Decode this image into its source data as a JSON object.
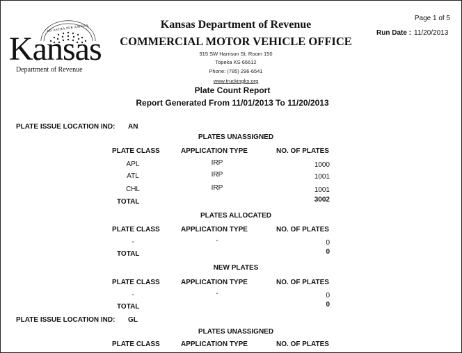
{
  "header": {
    "page_indicator": "Page 1 of 5",
    "run_date_label": "Run Date :",
    "run_date": "11/20/2013",
    "org_name": "Kansas Department of Revenue",
    "office": "COMMERCIAL MOTOR VEHICLE OFFICE",
    "address_line1": "915 SW Harrison St. Room 150",
    "address_line2": "Topeka KS 66612",
    "phone": "Phone: (785) 296-6541",
    "website": "www.truckingks.org",
    "report_title": "Plate Count Report",
    "report_range": "Report Generated From 11/01/2013 To 11/20/2013"
  },
  "logo": {
    "motto": "AD ASTRA PER ASPERA",
    "wordmark": "Kansas",
    "subtitle": "Department of Revenue"
  },
  "columns": {
    "plate_class": "PLATE CLASS",
    "application_type": "APPLICATION TYPE",
    "no_of_plates": "NO. OF PLATES"
  },
  "total_label": "TOTAL",
  "location_label": "PLATE ISSUE LOCATION IND:",
  "locations": [
    {
      "code": "AN",
      "sections": [
        {
          "title": "PLATES UNASSIGNED",
          "rows": [
            {
              "plate_class": "APL",
              "application_type": "IRP",
              "count": "1000"
            },
            {
              "plate_class": "ATL",
              "application_type": "IRP",
              "count": "1001"
            },
            {
              "plate_class": "CHL",
              "application_type": "IRP",
              "count": "1001"
            }
          ],
          "total": "3002"
        },
        {
          "title": "PLATES ALLOCATED",
          "rows": [
            {
              "plate_class": "-",
              "application_type": "-",
              "count": "0"
            }
          ],
          "total": "0"
        },
        {
          "title": "NEW PLATES",
          "rows": [
            {
              "plate_class": "-",
              "application_type": "-",
              "count": "0"
            }
          ],
          "total": "0"
        }
      ]
    },
    {
      "code": "GL",
      "sections": [
        {
          "title": "PLATES UNASSIGNED"
        }
      ]
    }
  ]
}
